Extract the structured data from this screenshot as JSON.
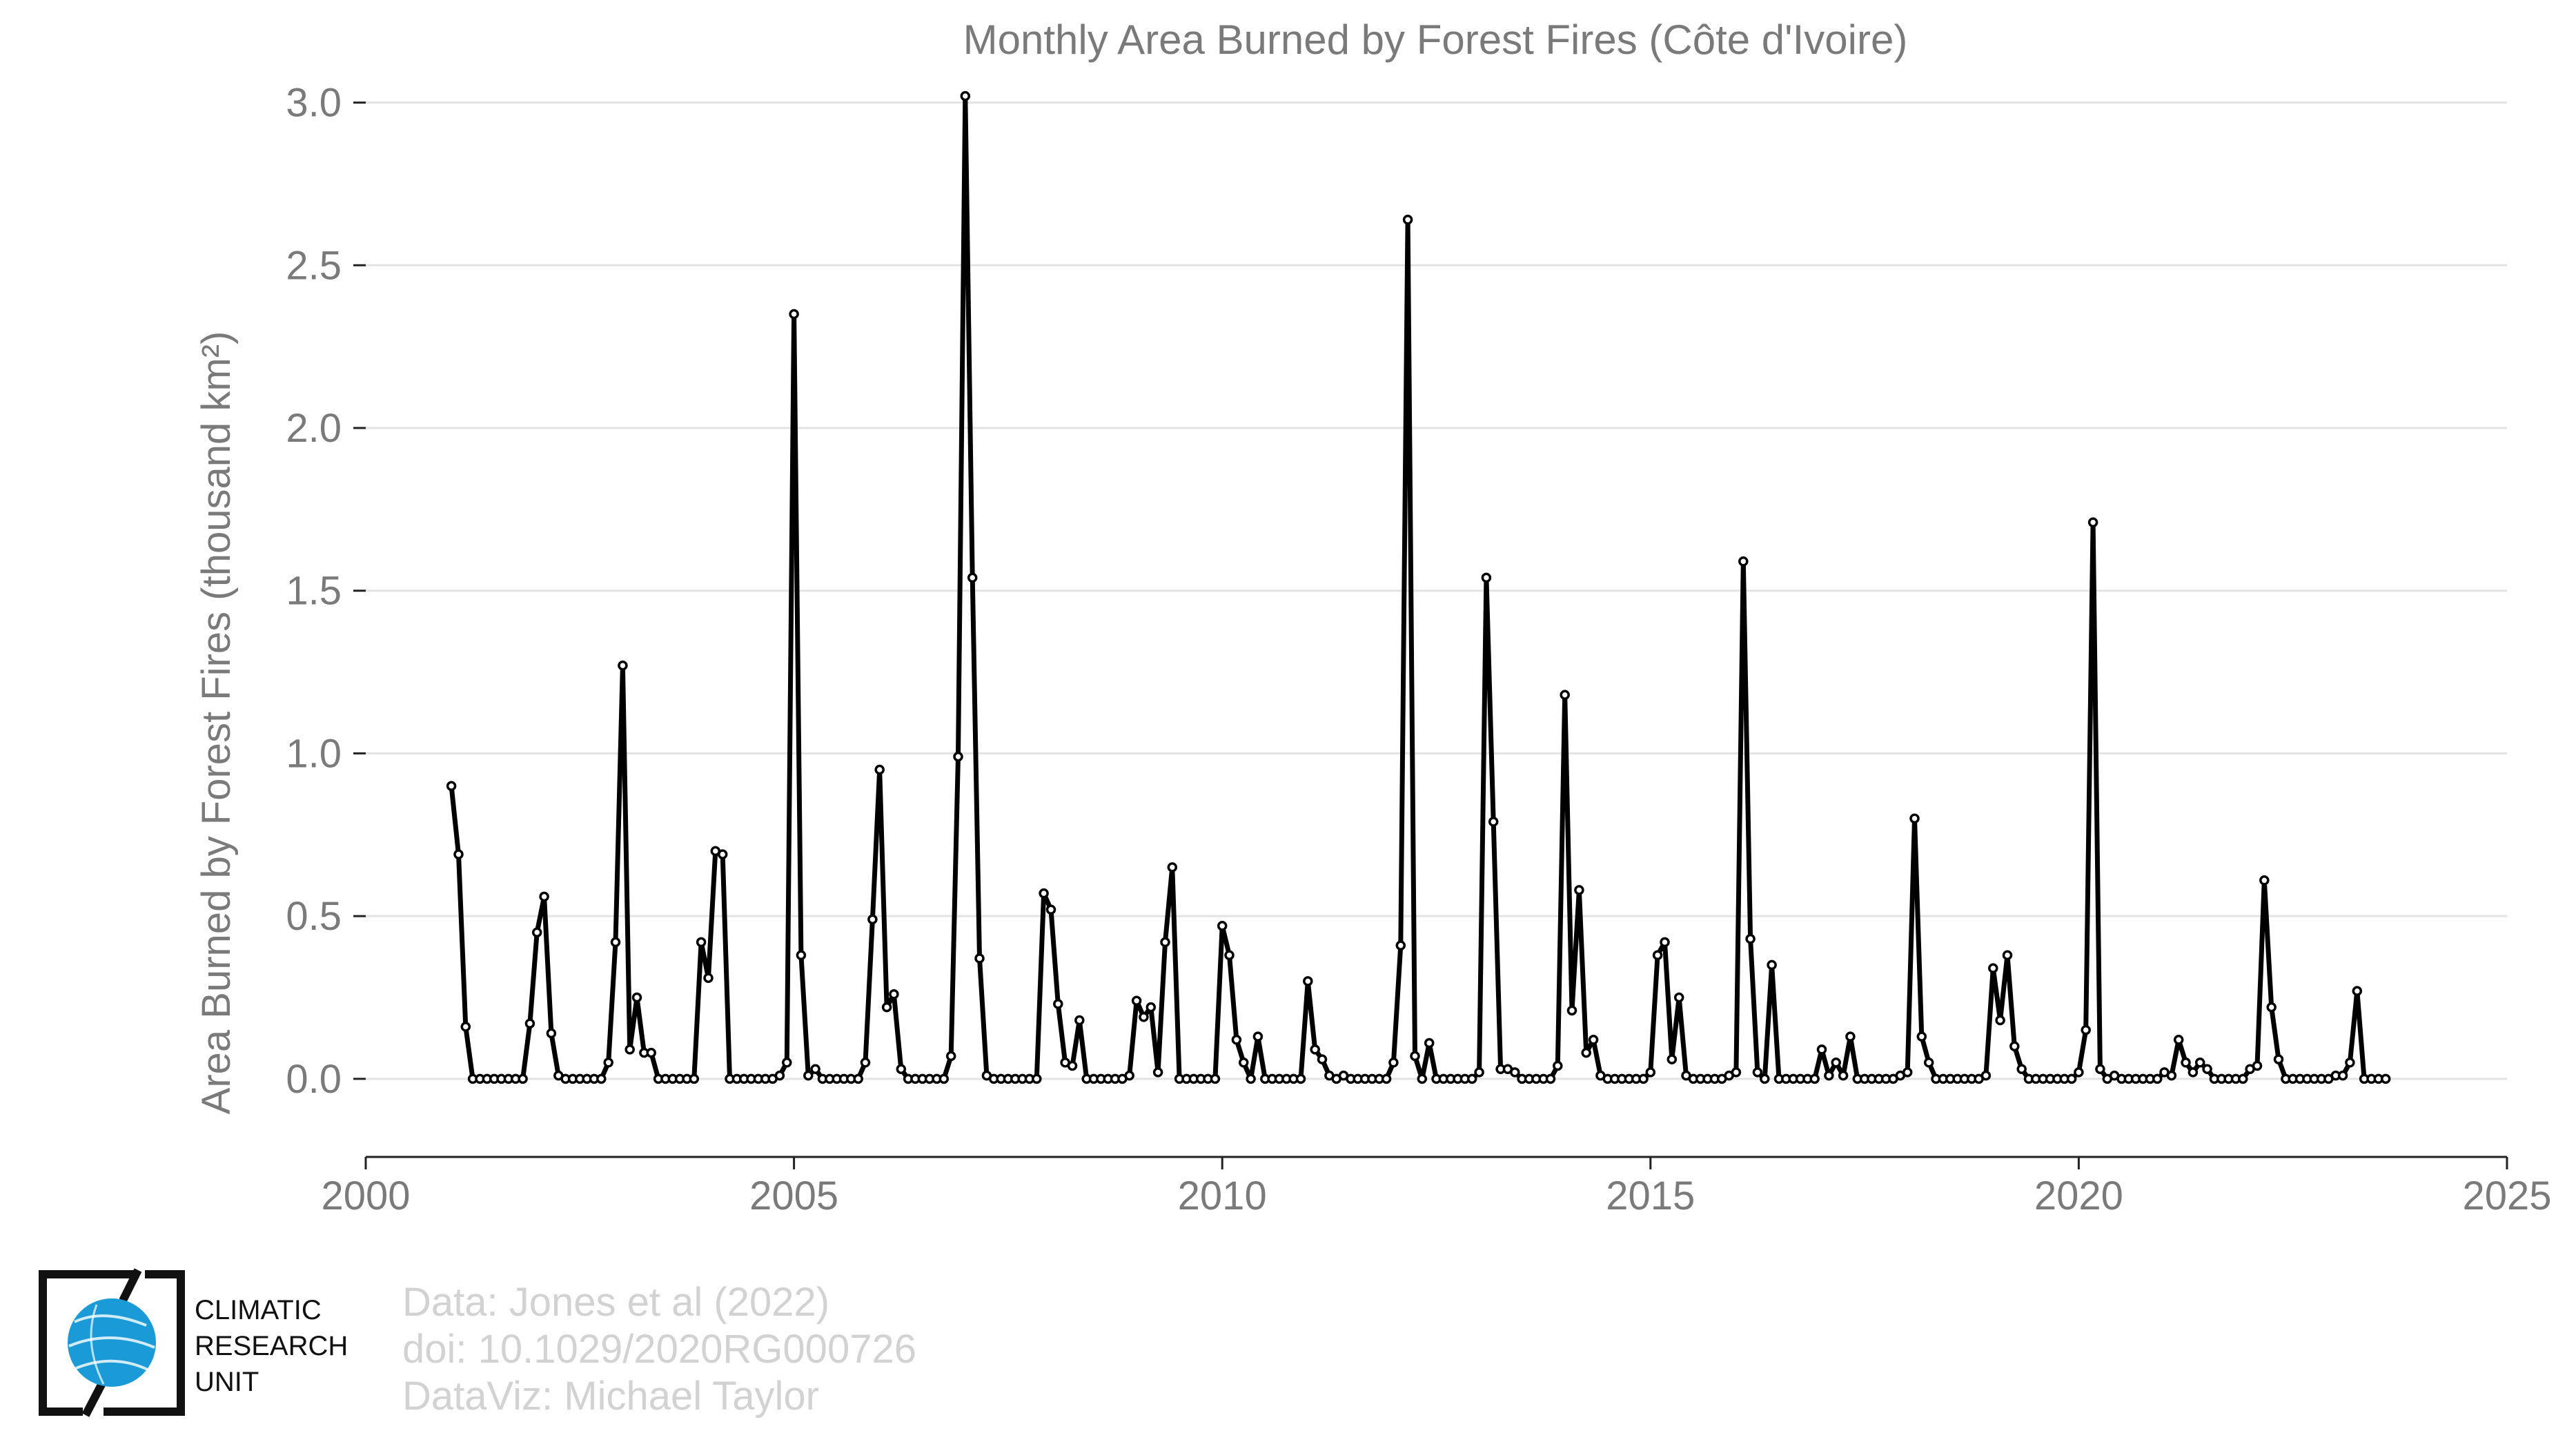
{
  "chart_data": {
    "type": "line",
    "title": "Monthly Area Burned by Forest Fires (Côte d'Ivoire)",
    "ylabel": "Area Burned by Forest Fires (thousand km²)",
    "xlabel": "",
    "xlim": [
      2000,
      2025
    ],
    "ylim": [
      -0.24,
      3.05
    ],
    "xticks": [
      2000,
      2005,
      2010,
      2015,
      2020,
      2025
    ],
    "xtick_labels": [
      "2000",
      "2005",
      "2010",
      "2015",
      "2020",
      "2025"
    ],
    "yticks": [
      0,
      0.5,
      1,
      1.5,
      2,
      2.5,
      3
    ],
    "ytick_labels": [
      "0.0",
      "0.5",
      "1.0",
      "1.5",
      "2.0",
      "2.5",
      "3.0"
    ],
    "grid": "horizontal",
    "legend": "none",
    "line_color": "#000000",
    "marker": "open-circle",
    "series": [
      {
        "start": "2001-01",
        "frequency": "monthly",
        "values": [
          0.9,
          0.69,
          0.16,
          0.0,
          0.0,
          0.0,
          0.0,
          0.0,
          0.0,
          0.0,
          0.0,
          0.17,
          0.45,
          0.56,
          0.14,
          0.01,
          0.0,
          0.0,
          0.0,
          0.0,
          0.0,
          0.0,
          0.05,
          0.42,
          1.27,
          0.09,
          0.25,
          0.08,
          0.08,
          0.0,
          0.0,
          0.0,
          0.0,
          0.0,
          0.0,
          0.42,
          0.31,
          0.7,
          0.69,
          0.0,
          0.0,
          0.0,
          0.0,
          0.0,
          0.0,
          0.0,
          0.01,
          0.05,
          2.35,
          0.38,
          0.01,
          0.03,
          0.0,
          0.0,
          0.0,
          0.0,
          0.0,
          0.0,
          0.05,
          0.49,
          0.95,
          0.22,
          0.26,
          0.03,
          0.0,
          0.0,
          0.0,
          0.0,
          0.0,
          0.0,
          0.07,
          0.99,
          3.02,
          1.54,
          0.37,
          0.01,
          0.0,
          0.0,
          0.0,
          0.0,
          0.0,
          0.0,
          0.0,
          0.57,
          0.52,
          0.23,
          0.05,
          0.04,
          0.18,
          0.0,
          0.0,
          0.0,
          0.0,
          0.0,
          0.0,
          0.01,
          0.24,
          0.19,
          0.22,
          0.02,
          0.42,
          0.65,
          0.0,
          0.0,
          0.0,
          0.0,
          0.0,
          0.0,
          0.47,
          0.38,
          0.12,
          0.05,
          0.0,
          0.13,
          0.0,
          0.0,
          0.0,
          0.0,
          0.0,
          0.0,
          0.3,
          0.09,
          0.06,
          0.01,
          0.0,
          0.01,
          0.0,
          0.0,
          0.0,
          0.0,
          0.0,
          0.0,
          0.05,
          0.41,
          2.64,
          0.07,
          0.0,
          0.11,
          0.0,
          0.0,
          0.0,
          0.0,
          0.0,
          0.0,
          0.02,
          1.54,
          0.79,
          0.03,
          0.03,
          0.02,
          0.0,
          0.0,
          0.0,
          0.0,
          0.0,
          0.04,
          1.18,
          0.21,
          0.58,
          0.08,
          0.12,
          0.01,
          0.0,
          0.0,
          0.0,
          0.0,
          0.0,
          0.0,
          0.02,
          0.38,
          0.42,
          0.06,
          0.25,
          0.01,
          0.0,
          0.0,
          0.0,
          0.0,
          0.0,
          0.01,
          0.02,
          1.59,
          0.43,
          0.02,
          0.0,
          0.35,
          0.0,
          0.0,
          0.0,
          0.0,
          0.0,
          0.0,
          0.09,
          0.01,
          0.05,
          0.01,
          0.13,
          0.0,
          0.0,
          0.0,
          0.0,
          0.0,
          0.0,
          0.01,
          0.02,
          0.8,
          0.13,
          0.05,
          0.0,
          0.0,
          0.0,
          0.0,
          0.0,
          0.0,
          0.0,
          0.01,
          0.34,
          0.18,
          0.38,
          0.1,
          0.03,
          0.0,
          0.0,
          0.0,
          0.0,
          0.0,
          0.0,
          0.0,
          0.02,
          0.15,
          1.71,
          0.03,
          0.0,
          0.01,
          0.0,
          0.0,
          0.0,
          0.0,
          0.0,
          0.0,
          0.02,
          0.01,
          0.12,
          0.05,
          0.02,
          0.05,
          0.03,
          0.0,
          0.0,
          0.0,
          0.0,
          0.0,
          0.03,
          0.04,
          0.61,
          0.22,
          0.06,
          0.0,
          0.0,
          0.0,
          0.0,
          0.0,
          0.0,
          0.0,
          0.01,
          0.01,
          0.05,
          0.27,
          0.0,
          0.0,
          0.0,
          0.0
        ]
      }
    ]
  },
  "credits": {
    "line1": "Data: Jones et al (2022)",
    "line2": "doi: 10.1029/2020RG000726",
    "line3": "DataViz: Michael Taylor"
  },
  "logo": {
    "line1": "CLIMATIC",
    "line2": "RESEARCH",
    "line3": "UNIT",
    "globe_color": "#1a9bd7"
  }
}
